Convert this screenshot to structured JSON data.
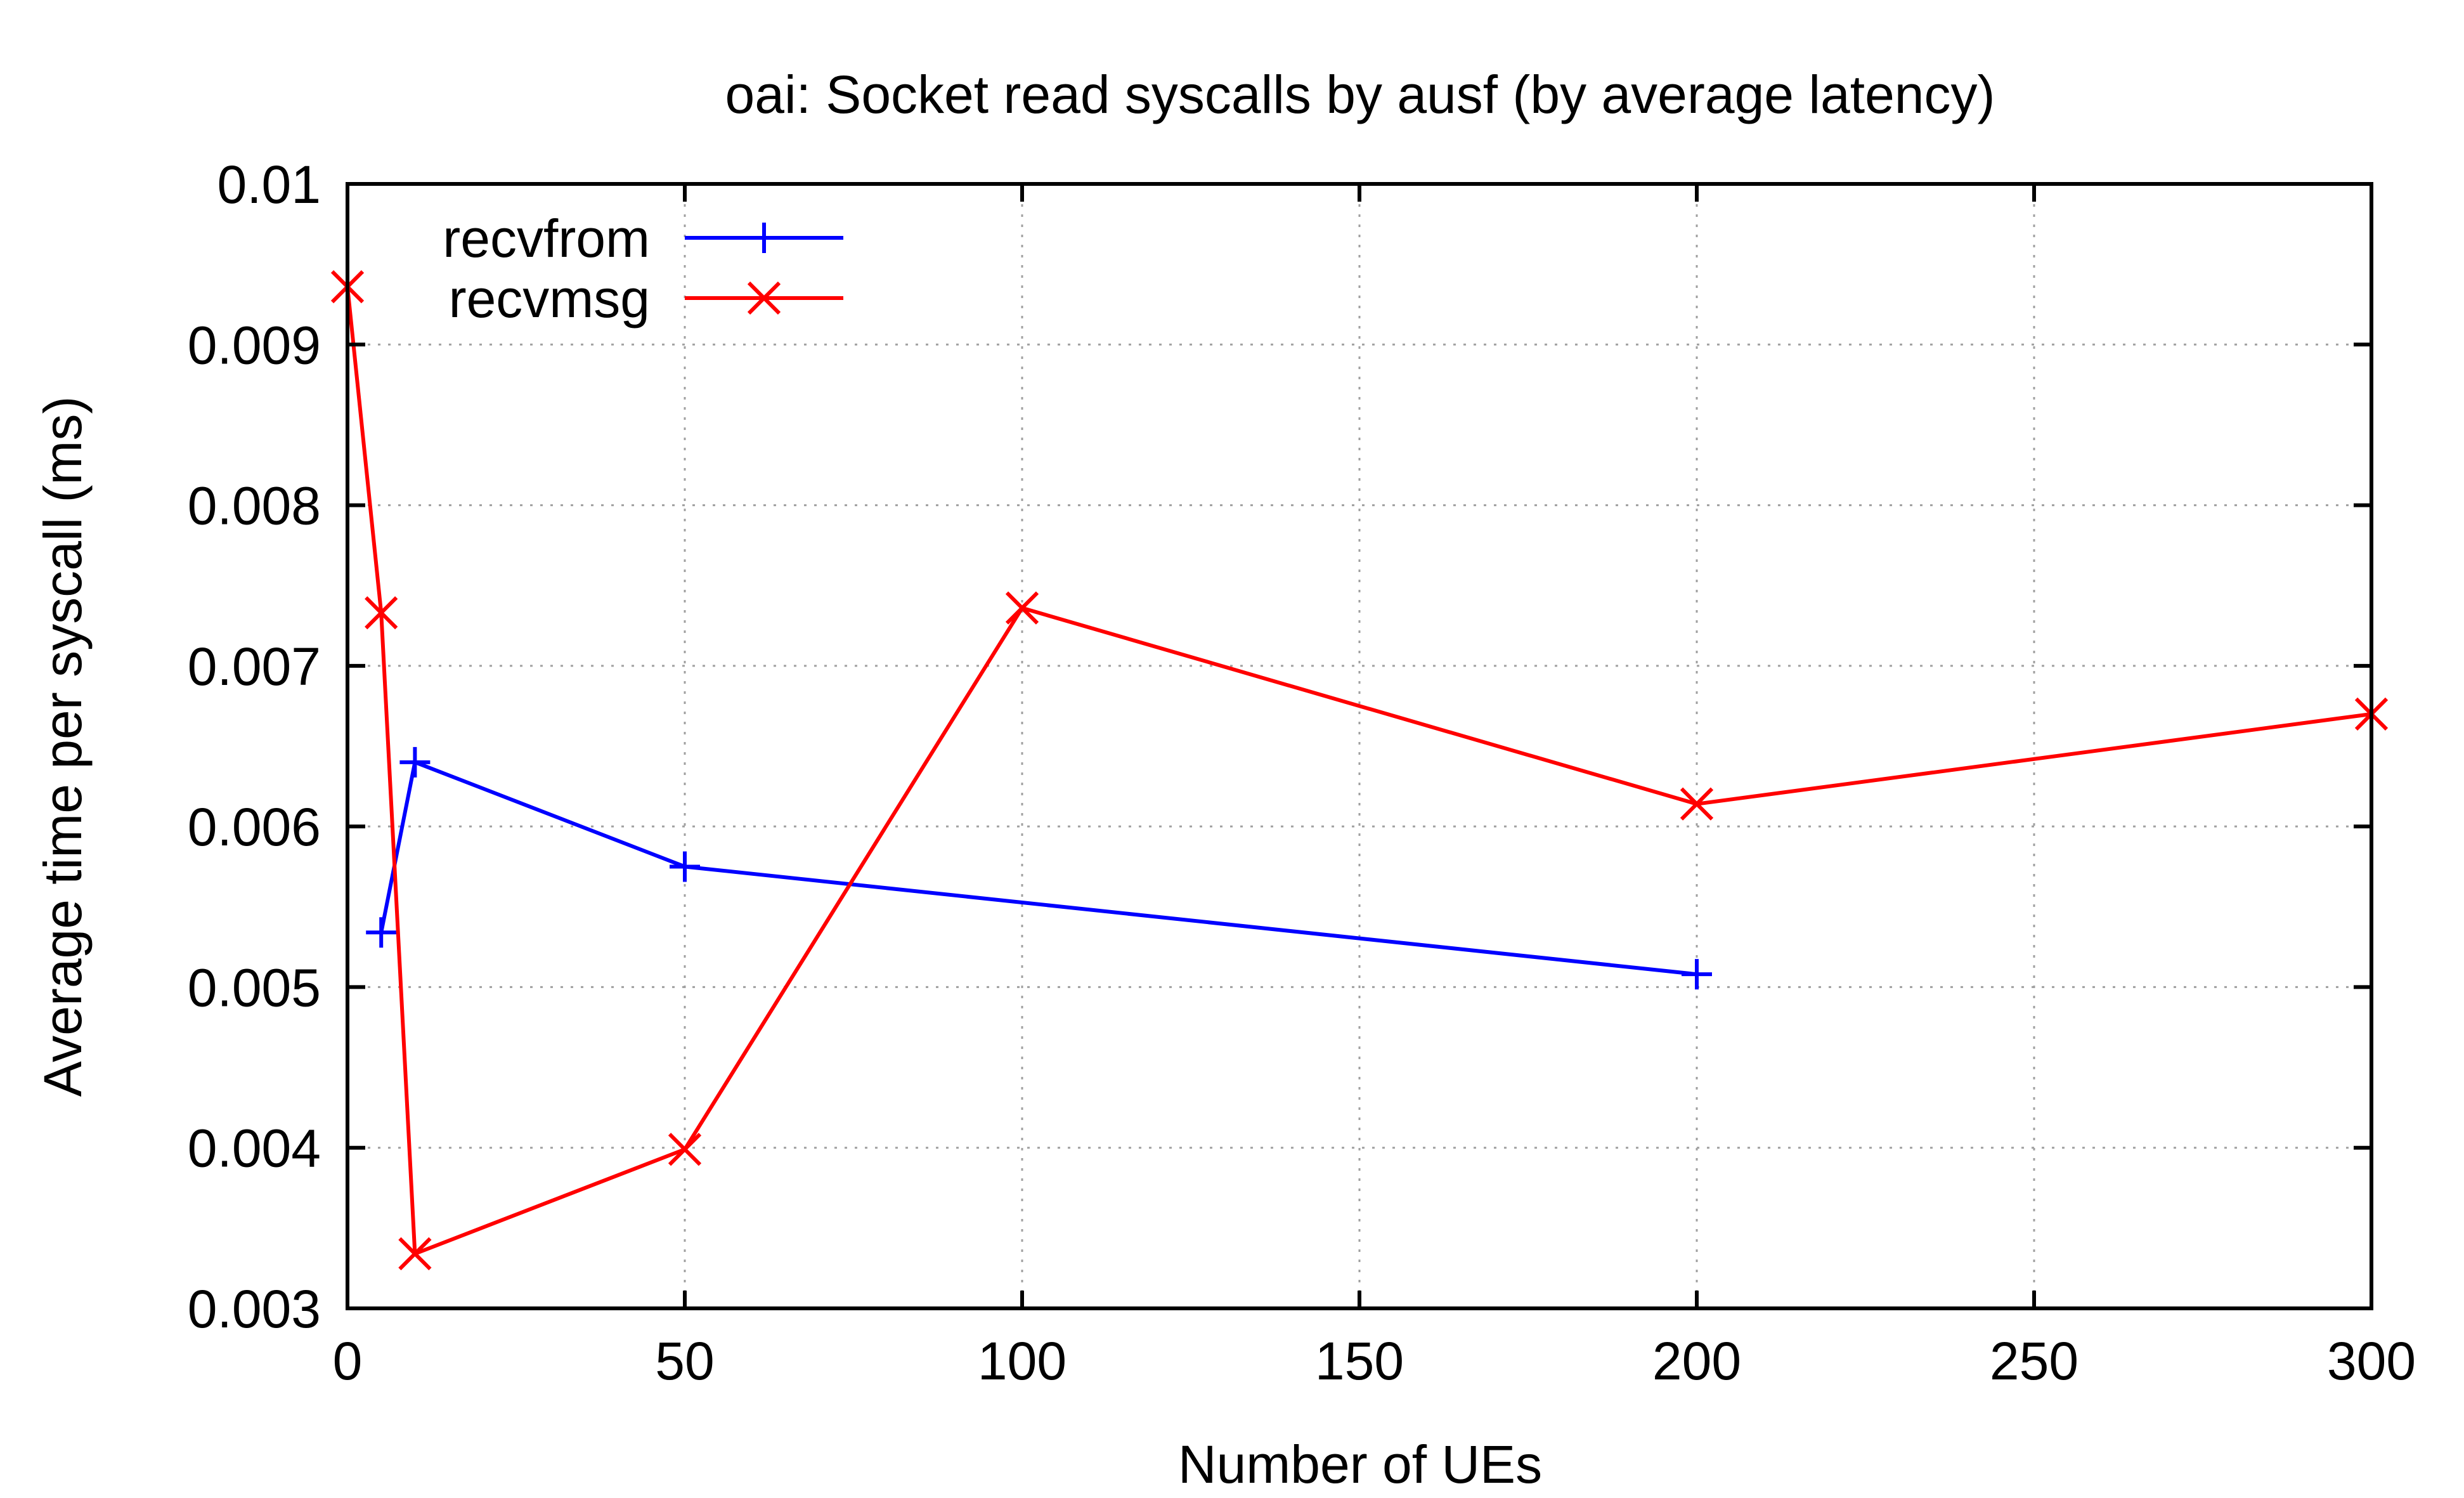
{
  "chart_data": {
    "type": "line",
    "title": "oai: Socket read syscalls by ausf (by average latency)",
    "xlabel": "Number of UEs",
    "ylabel": "Average time per syscall (ms)",
    "xlim": [
      0,
      300
    ],
    "ylim": [
      0.003,
      0.01
    ],
    "xticks": [
      0,
      50,
      100,
      150,
      200,
      250,
      300
    ],
    "yticks": [
      0.003,
      0.004,
      0.005,
      0.006,
      0.007,
      0.008,
      0.009,
      0.01
    ],
    "xtick_labels": [
      "0",
      "50",
      "100",
      "150",
      "200",
      "250",
      "300"
    ],
    "ytick_labels": [
      "0.003",
      "0.004",
      "0.005",
      "0.006",
      "0.007",
      "0.008",
      "0.009",
      "0.01"
    ],
    "grid": true,
    "legend_position": "top-left",
    "series": [
      {
        "name": "recvfrom",
        "color": "#0000ff",
        "marker": "plus",
        "x": [
          5,
          10,
          50,
          200
        ],
        "y": [
          0.00534,
          0.0064,
          0.00575,
          0.00508
        ]
      },
      {
        "name": "recvmsg",
        "color": "#ff0000",
        "marker": "cross",
        "x": [
          0,
          5,
          10,
          50,
          100,
          200,
          300
        ],
        "y": [
          0.00936,
          0.00733,
          0.00334,
          0.00399,
          0.00736,
          0.00614,
          0.0067
        ]
      }
    ]
  }
}
